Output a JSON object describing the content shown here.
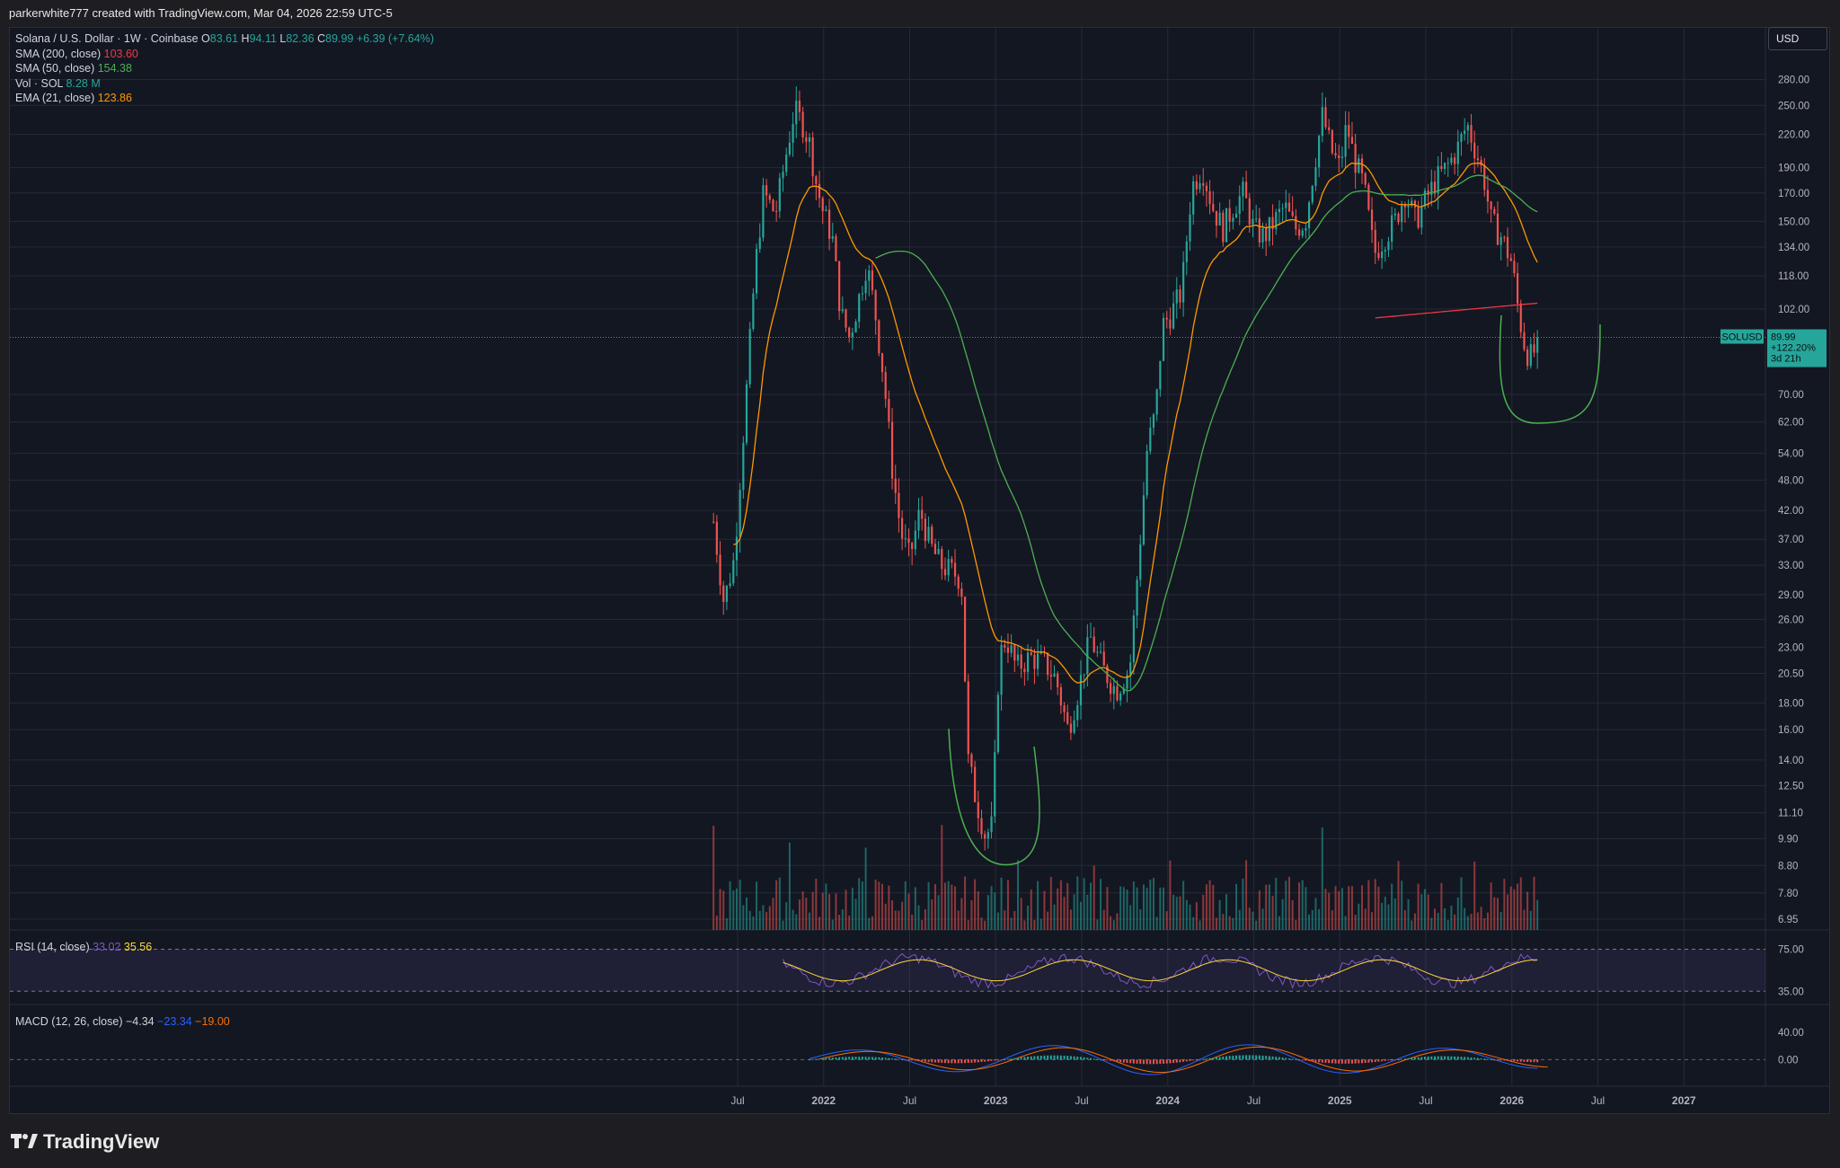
{
  "header": {
    "attribution": "parkerwhite777 created with TradingView.com, Mar 04, 2026 22:59 UTC-5"
  },
  "footer": {
    "brand": "TradingView"
  },
  "legend": {
    "title": "Solana / U.S. Dollar · 1W · Coinbase",
    "ohlc": [
      {
        "k": "O",
        "v": "83.61"
      },
      {
        "k": "H",
        "v": "94.11"
      },
      {
        "k": "L",
        "v": "82.36"
      },
      {
        "k": "C",
        "v": "89.99"
      }
    ],
    "change": "+6.39 (+7.64%)",
    "indicators": [
      {
        "label": "SMA (200, close)",
        "value": "103.60",
        "color": "#f23645"
      },
      {
        "label": "SMA (50, close)",
        "value": "154.38",
        "color": "#4caf50"
      },
      {
        "label": "Vol · SOL",
        "value": "8.28 M",
        "color": "#26a69a"
      },
      {
        "label": "EMA (21, close)",
        "value": "123.86",
        "color": "#ff9800"
      }
    ]
  },
  "currency": "USD",
  "price_tag": {
    "symbol": "SOLUSD",
    "price": "89.99",
    "change": "+122.20%",
    "countdown": "3d 21h"
  },
  "rsi_panel": {
    "label": "RSI (14, close)",
    "rsi": "33.02",
    "ma": "35.56",
    "levels": [
      "75.00",
      "35.00"
    ]
  },
  "macd_panel": {
    "label": "MACD (12, 26, close)",
    "macd": "−4.34",
    "signal": "−23.34",
    "hist": "−19.00",
    "levels": [
      "40.00",
      "0.00"
    ]
  },
  "colors": {
    "up": "#26a69a",
    "down": "#ef5350",
    "background": "#131722",
    "grid": "#262a36",
    "sma200": "#f23645",
    "sma50": "#4caf50",
    "ema21": "#ff9800",
    "rsi": "#7e57c2",
    "rsi_ma": "#fdd835",
    "macd": "#2962ff",
    "signal": "#ff6d00",
    "drawing": "#4caf50"
  },
  "chart_data": {
    "type": "candlestick",
    "scale": "log",
    "price_ticks": [
      "280.00",
      "250.00",
      "220.00",
      "190.00",
      "170.00",
      "150.00",
      "134.00",
      "118.00",
      "102.00",
      "70.00",
      "62.00",
      "54.00",
      "48.00",
      "42.00",
      "37.00",
      "33.00",
      "29.00",
      "26.00",
      "23.00",
      "20.50",
      "18.00",
      "16.00",
      "14.00",
      "12.50",
      "11.10",
      "9.90",
      "8.80",
      "7.80",
      "6.95"
    ],
    "time_ticks": [
      {
        "label": "Jul",
        "t": 2021.5,
        "bold": false
      },
      {
        "label": "2022",
        "t": 2022.0,
        "bold": true
      },
      {
        "label": "Jul",
        "t": 2022.5,
        "bold": false
      },
      {
        "label": "2023",
        "t": 2023.0,
        "bold": true
      },
      {
        "label": "Jul",
        "t": 2023.5,
        "bold": false
      },
      {
        "label": "2024",
        "t": 2024.0,
        "bold": true
      },
      {
        "label": "Jul",
        "t": 2024.5,
        "bold": false
      },
      {
        "label": "2025",
        "t": 2025.0,
        "bold": true
      },
      {
        "label": "Jul",
        "t": 2025.5,
        "bold": false
      },
      {
        "label": "2026",
        "t": 2026.0,
        "bold": true
      },
      {
        "label": "Jul",
        "t": 2026.5,
        "bold": false
      },
      {
        "label": "2027",
        "t": 2027.0,
        "bold": true
      }
    ],
    "close_path": [
      [
        2021.36,
        40
      ],
      [
        2021.42,
        28
      ],
      [
        2021.48,
        34
      ],
      [
        2021.55,
        70
      ],
      [
        2021.6,
        120
      ],
      [
        2021.65,
        170
      ],
      [
        2021.72,
        155
      ],
      [
        2021.78,
        200
      ],
      [
        2021.83,
        245
      ],
      [
        2021.88,
        230
      ],
      [
        2021.92,
        210
      ],
      [
        2021.96,
        175
      ],
      [
        2022.0,
        155
      ],
      [
        2022.05,
        140
      ],
      [
        2022.1,
        100
      ],
      [
        2022.15,
        90
      ],
      [
        2022.2,
        105
      ],
      [
        2022.25,
        125
      ],
      [
        2022.3,
        100
      ],
      [
        2022.35,
        75
      ],
      [
        2022.4,
        50
      ],
      [
        2022.45,
        38
      ],
      [
        2022.5,
        34
      ],
      [
        2022.56,
        42
      ],
      [
        2022.62,
        36
      ],
      [
        2022.68,
        33
      ],
      [
        2022.75,
        32
      ],
      [
        2022.8,
        31
      ],
      [
        2022.84,
        14
      ],
      [
        2022.88,
        12
      ],
      [
        2022.94,
        10
      ],
      [
        2022.98,
        10.5
      ],
      [
        2023.02,
        22
      ],
      [
        2023.06,
        24
      ],
      [
        2023.12,
        21
      ],
      [
        2023.2,
        22
      ],
      [
        2023.28,
        21.5
      ],
      [
        2023.35,
        20
      ],
      [
        2023.42,
        16
      ],
      [
        2023.48,
        19
      ],
      [
        2023.55,
        24
      ],
      [
        2023.62,
        21
      ],
      [
        2023.7,
        19
      ],
      [
        2023.78,
        21
      ],
      [
        2023.84,
        37
      ],
      [
        2023.88,
        55
      ],
      [
        2023.93,
        65
      ],
      [
        2023.97,
        95
      ],
      [
        2024.02,
        100
      ],
      [
        2024.08,
        110
      ],
      [
        2024.14,
        175
      ],
      [
        2024.2,
        190
      ],
      [
        2024.26,
        160
      ],
      [
        2024.32,
        145
      ],
      [
        2024.38,
        160
      ],
      [
        2024.44,
        170
      ],
      [
        2024.5,
        145
      ],
      [
        2024.56,
        140
      ],
      [
        2024.62,
        150
      ],
      [
        2024.68,
        160
      ],
      [
        2024.74,
        145
      ],
      [
        2024.8,
        150
      ],
      [
        2024.86,
        200
      ],
      [
        2024.9,
        240
      ],
      [
        2024.95,
        205
      ],
      [
        2025.0,
        190
      ],
      [
        2025.04,
        230
      ],
      [
        2025.08,
        200
      ],
      [
        2025.14,
        175
      ],
      [
        2025.2,
        130
      ],
      [
        2025.26,
        140
      ],
      [
        2025.32,
        150
      ],
      [
        2025.38,
        170
      ],
      [
        2025.44,
        150
      ],
      [
        2025.5,
        165
      ],
      [
        2025.56,
        180
      ],
      [
        2025.62,
        190
      ],
      [
        2025.68,
        205
      ],
      [
        2025.74,
        230
      ],
      [
        2025.8,
        200
      ],
      [
        2025.84,
        180
      ],
      [
        2025.88,
        150
      ],
      [
        2025.94,
        140
      ],
      [
        2026.0,
        125
      ],
      [
        2026.04,
        100
      ],
      [
        2026.08,
        85
      ],
      [
        2026.12,
        82
      ],
      [
        2026.15,
        90
      ]
    ]
  }
}
